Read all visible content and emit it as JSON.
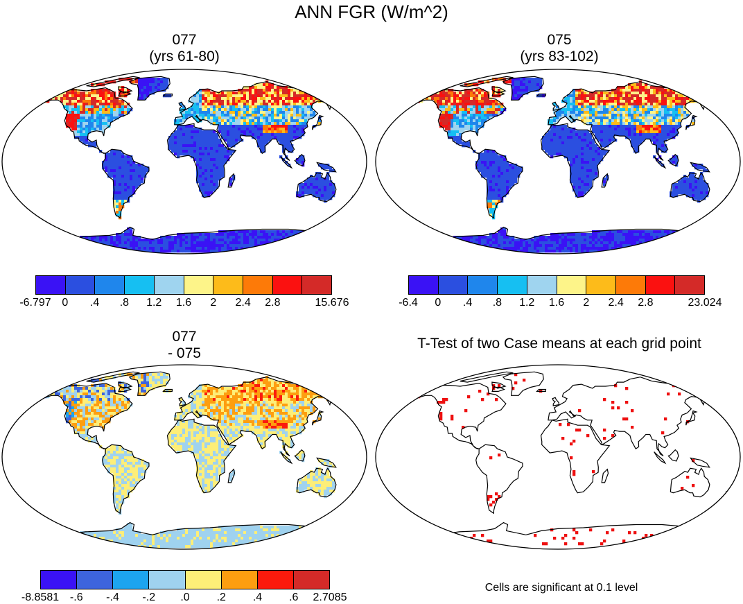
{
  "title": "ANN FGR (W/m^2)",
  "palettes": {
    "case": [
      "#3a12f5",
      "#2b4fe0",
      "#1f86ec",
      "#16bff2",
      "#9fd4ef",
      "#fdf489",
      "#fdbb1a",
      "#fd7a08",
      "#fb1110",
      "#d42a28"
    ],
    "diff": [
      "#3a12f5",
      "#3d64dd",
      "#1da4ef",
      "#9fd2ef",
      "#fdee78",
      "#fd9e10",
      "#fb1a0c",
      "#d42a28"
    ],
    "sig": "#ee1010",
    "land_outline": "#000000"
  },
  "panels": [
    {
      "id": "p1",
      "line1": "077",
      "line2": "(yrs 61-80)",
      "colorbar": {
        "palette": "case",
        "labels": [
          "-6.797",
          "0",
          ".4",
          ".8",
          "1.2",
          "1.6",
          "2",
          "2.4",
          "2.8",
          "15.676"
        ]
      }
    },
    {
      "id": "p2",
      "line1": "075",
      "line2": "(yrs 83-102)",
      "colorbar": {
        "palette": "case",
        "labels": [
          "-6.4",
          "0",
          ".4",
          ".8",
          "1.2",
          "1.6",
          "2",
          "2.4",
          "2.8",
          "23.024"
        ]
      }
    },
    {
      "id": "p3",
      "line1": "077",
      "line2": "- 075",
      "colorbar": {
        "palette": "diff",
        "labels": [
          "-8.8581",
          "-.6",
          "-.4",
          "-.2",
          ".0",
          ".2",
          ".4",
          ".6",
          "2.7085"
        ]
      }
    },
    {
      "id": "p4",
      "line1": "T-Test of two Case means at each grid point",
      "note": "Cells are significant at 0.1 level"
    }
  ]
}
